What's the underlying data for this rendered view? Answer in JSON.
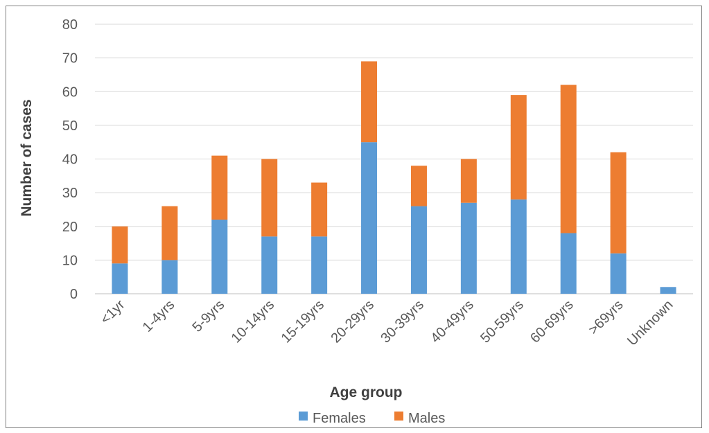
{
  "chart_data": {
    "type": "bar",
    "stacked": true,
    "title": "",
    "xlabel": "Age group",
    "ylabel": "Number of cases",
    "ylim": [
      0,
      80
    ],
    "yticks": [
      0,
      10,
      20,
      30,
      40,
      50,
      60,
      70,
      80
    ],
    "grid": true,
    "legend_position": "bottom",
    "categories": [
      "<1yr",
      "1-4yrs",
      "5-9yrs",
      "10-14yrs",
      "15-19yrs",
      "20-29yrs",
      "30-39yrs",
      "40-49yrs",
      "50-59yrs",
      "60-69yrs",
      ">69yrs",
      "Unknown"
    ],
    "series": [
      {
        "name": "Females",
        "color": "#5b9bd5",
        "values": [
          9,
          10,
          22,
          17,
          17,
          45,
          26,
          27,
          28,
          18,
          12,
          2
        ]
      },
      {
        "name": "Males",
        "color": "#ed7d31",
        "values": [
          11,
          16,
          19,
          23,
          16,
          24,
          12,
          13,
          31,
          44,
          30,
          0
        ]
      }
    ]
  }
}
